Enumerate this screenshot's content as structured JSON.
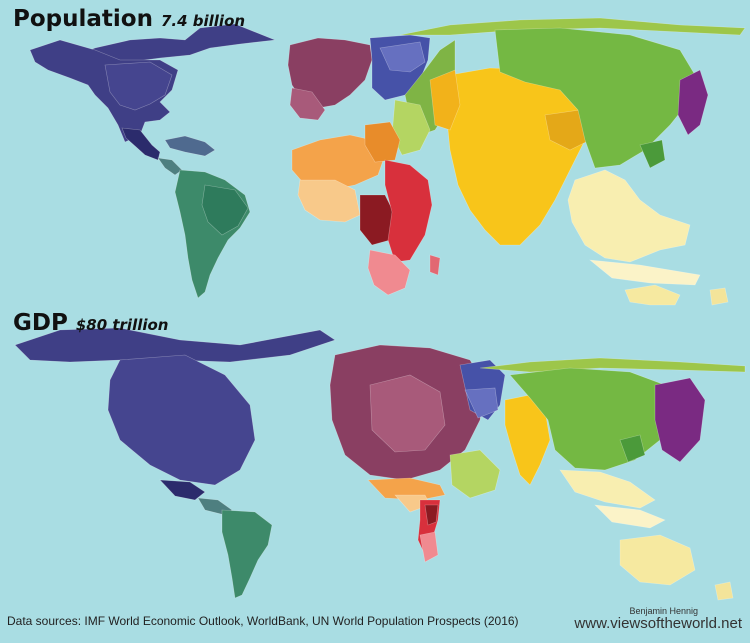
{
  "maps": {
    "population": {
      "title": "Population",
      "value": "7.4 billion"
    },
    "gdp": {
      "title": "GDP",
      "value": "$80 trillion"
    }
  },
  "footer": {
    "sources": "Data sources: IMF World Economic Outlook, WorldBank, UN World Population Prospects (2016)",
    "author": "Benjamin Hennig",
    "website": "www.viewsoftheworld.net"
  },
  "colors": {
    "ocean": "#a9dde3",
    "north_america": "#3f3f86",
    "latin_america": "#3d8a6a",
    "europe": "#8a3f62",
    "russia": "#4652a8",
    "middle_east": "#9dc64a",
    "north_africa": "#f4a34a",
    "sub_saharan_africa": "#d8303c",
    "south_asia": "#f8c51a",
    "east_asia": "#74b843",
    "japan": "#7a2a82",
    "southeast_asia_oceania": "#f8eeb0"
  }
}
